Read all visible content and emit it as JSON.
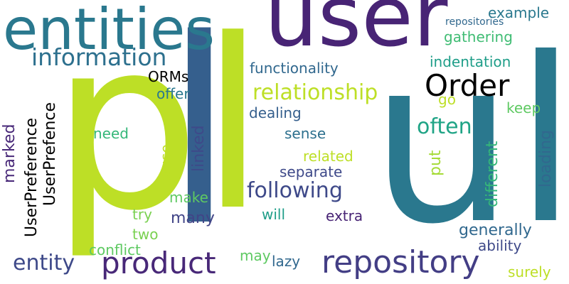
{
  "words": [
    {
      "id": "pl",
      "text": "pl",
      "color": "#bddf26"
    },
    {
      "id": "l",
      "text": "l",
      "color": "#355f8d"
    },
    {
      "id": "ul",
      "text": "ul",
      "color": "#2a788e"
    },
    {
      "id": "user",
      "text": "user",
      "color": "#482475"
    },
    {
      "id": "entities",
      "text": "entities",
      "color": "#2a788e"
    },
    {
      "id": "information",
      "text": "information",
      "color": "#2d708e"
    },
    {
      "id": "order",
      "text": "Order",
      "color": "#2a788e"
    },
    {
      "id": "example",
      "text": "example",
      "color": "#2a788e"
    },
    {
      "id": "repositories",
      "text": "repositories",
      "color": "#31688e"
    },
    {
      "id": "gathering",
      "text": "gathering",
      "color": "#3fbc73"
    },
    {
      "id": "functionality",
      "text": "functionality",
      "color": "#31688e"
    },
    {
      "id": "indentation",
      "text": "indentation",
      "color": "#1f9e89"
    },
    {
      "id": "relationship",
      "text": "relationship",
      "color": "#bddf26"
    },
    {
      "id": "ormS",
      "text": "ORMs",
      "color": "#5ec962"
    },
    {
      "id": "offer",
      "text": "offer",
      "color": "#2a788e"
    },
    {
      "id": "userpreference",
      "text": "UserPreference",
      "color": "#3e4989"
    },
    {
      "id": "userprefence",
      "text": "UserPrefence",
      "color": "#35b779"
    },
    {
      "id": "marked",
      "text": "marked",
      "color": "#482878"
    },
    {
      "id": "go",
      "text": "go",
      "color": "#bddf26"
    },
    {
      "id": "keep",
      "text": "keep",
      "color": "#5ec962"
    },
    {
      "id": "often",
      "text": "often",
      "color": "#20a486"
    },
    {
      "id": "dealing",
      "text": "dealing",
      "color": "#355f8d"
    },
    {
      "id": "sense",
      "text": "sense",
      "color": "#2d708e"
    },
    {
      "id": "need",
      "text": "need",
      "color": "#35b779"
    },
    {
      "id": "linked",
      "text": "linked",
      "color": "#3e4989"
    },
    {
      "id": "related",
      "text": "related",
      "color": "#bddf26"
    },
    {
      "id": "put",
      "text": "put",
      "color": "#a5db36"
    },
    {
      "id": "different",
      "text": "different",
      "color": "#35b779"
    },
    {
      "id": "loading",
      "text": "loading",
      "color": "#31688e"
    },
    {
      "id": "cause",
      "text": "cause",
      "color": "#bddf26"
    },
    {
      "id": "separate",
      "text": "separate",
      "color": "#3e4989"
    },
    {
      "id": "following",
      "text": "following",
      "color": "#3e4989"
    },
    {
      "id": "make",
      "text": "make",
      "color": "#5ec962"
    },
    {
      "id": "try",
      "text": "try",
      "color": "#7ad151"
    },
    {
      "id": "many",
      "text": "many",
      "color": "#414487"
    },
    {
      "id": "will",
      "text": "will",
      "color": "#1f9e89"
    },
    {
      "id": "extra",
      "text": "extra",
      "color": "#482475"
    },
    {
      "id": "generally",
      "text": "generally",
      "color": "#31688e"
    },
    {
      "id": "two",
      "text": "two",
      "color": "#7ad151"
    },
    {
      "id": "ability",
      "text": "ability",
      "color": "#3e4989"
    },
    {
      "id": "conflict",
      "text": "conflict",
      "color": "#5ec962"
    },
    {
      "id": "entity",
      "text": "entity",
      "color": "#3e4989"
    },
    {
      "id": "product",
      "text": "product",
      "color": "#482878"
    },
    {
      "id": "may",
      "text": "may",
      "color": "#5ec962"
    },
    {
      "id": "lazy",
      "text": "lazy",
      "color": "#31688e"
    },
    {
      "id": "repository",
      "text": "repository",
      "color": "#433e85"
    },
    {
      "id": "surely",
      "text": "surely",
      "color": "#bddf26"
    }
  ]
}
